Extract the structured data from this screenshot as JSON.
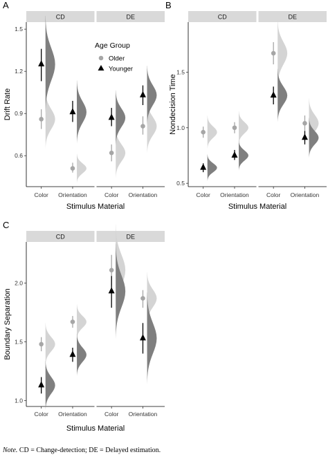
{
  "figure": {
    "legend": {
      "title": "Age Group",
      "entries": [
        {
          "label": "Older",
          "shape": "circle",
          "color": "#a6a6a6"
        },
        {
          "label": "Younger",
          "shape": "triangle",
          "color": "#000000"
        }
      ]
    },
    "colors": {
      "older_point": "#a6a6a6",
      "older_violin": "#d4d4d4",
      "younger_point": "#000000",
      "younger_violin": "#7f7f7f",
      "strip": "#d9d9d9"
    },
    "note_label": "Note.",
    "note_text": " CD = Change-detection; DE = Delayed estimation."
  },
  "chart_data": [
    {
      "type": "scatter",
      "panel": "A",
      "ylabel": "Drift Rate",
      "xlabel": "Stimulus Material",
      "facets": [
        "CD",
        "DE"
      ],
      "categories": [
        "Color",
        "Orientation"
      ],
      "ylim": [
        0.38,
        1.55
      ],
      "yticks": [
        0.6,
        0.9,
        1.2,
        1.5
      ],
      "ytick_labels": [
        "0.6",
        "0.9",
        "1.2",
        "1.5"
      ],
      "series": [
        {
          "name": "Older",
          "points": [
            {
              "facet": "CD",
              "x": "Color",
              "y": 0.86,
              "lo": 0.79,
              "hi": 0.93
            },
            {
              "facet": "CD",
              "x": "Orientation",
              "y": 0.51,
              "lo": 0.48,
              "hi": 0.55
            },
            {
              "facet": "DE",
              "x": "Color",
              "y": 0.62,
              "lo": 0.56,
              "hi": 0.68
            },
            {
              "facet": "DE",
              "x": "Orientation",
              "y": 0.81,
              "lo": 0.75,
              "hi": 0.88
            }
          ]
        },
        {
          "name": "Younger",
          "points": [
            {
              "facet": "CD",
              "x": "Color",
              "y": 1.25,
              "lo": 1.13,
              "hi": 1.36
            },
            {
              "facet": "CD",
              "x": "Orientation",
              "y": 0.91,
              "lo": 0.84,
              "hi": 0.99
            },
            {
              "facet": "DE",
              "x": "Color",
              "y": 0.87,
              "lo": 0.81,
              "hi": 0.94
            },
            {
              "facet": "DE",
              "x": "Orientation",
              "y": 1.03,
              "lo": 0.96,
              "hi": 1.1
            }
          ]
        }
      ]
    },
    {
      "type": "scatter",
      "panel": "B",
      "ylabel": "Nondecision Time",
      "xlabel": "Stimulus Material",
      "facets": [
        "CD",
        "DE"
      ],
      "categories": [
        "Color",
        "Orientation"
      ],
      "ylim": [
        0.47,
        1.95
      ],
      "yticks": [
        0.5,
        1.0,
        1.5
      ],
      "ytick_labels": [
        "0.5",
        "1.0",
        "1.5"
      ],
      "series": [
        {
          "name": "Older",
          "points": [
            {
              "facet": "CD",
              "x": "Color",
              "y": 0.96,
              "lo": 0.91,
              "hi": 1.01
            },
            {
              "facet": "CD",
              "x": "Orientation",
              "y": 1.0,
              "lo": 0.95,
              "hi": 1.05
            },
            {
              "facet": "DE",
              "x": "Color",
              "y": 1.67,
              "lo": 1.57,
              "hi": 1.77
            },
            {
              "facet": "DE",
              "x": "Orientation",
              "y": 1.04,
              "lo": 0.96,
              "hi": 1.11
            }
          ]
        },
        {
          "name": "Younger",
          "points": [
            {
              "facet": "CD",
              "x": "Color",
              "y": 0.64,
              "lo": 0.6,
              "hi": 0.68
            },
            {
              "facet": "CD",
              "x": "Orientation",
              "y": 0.75,
              "lo": 0.71,
              "hi": 0.8
            },
            {
              "facet": "DE",
              "x": "Color",
              "y": 1.29,
              "lo": 1.21,
              "hi": 1.37
            },
            {
              "facet": "DE",
              "x": "Orientation",
              "y": 0.91,
              "lo": 0.85,
              "hi": 0.97
            }
          ]
        }
      ]
    },
    {
      "type": "scatter",
      "panel": "C",
      "ylabel": "Boundary Separation",
      "xlabel": "Stimulus Material",
      "facets": [
        "CD",
        "DE"
      ],
      "categories": [
        "Color",
        "Orientation"
      ],
      "ylim": [
        0.95,
        2.35
      ],
      "yticks": [
        1.0,
        1.5,
        2.0
      ],
      "ytick_labels": [
        "1.0",
        "1.5",
        "2.0"
      ],
      "series": [
        {
          "name": "Older",
          "points": [
            {
              "facet": "CD",
              "x": "Color",
              "y": 1.48,
              "lo": 1.42,
              "hi": 1.54
            },
            {
              "facet": "CD",
              "x": "Orientation",
              "y": 1.67,
              "lo": 1.62,
              "hi": 1.72
            },
            {
              "facet": "DE",
              "x": "Color",
              "y": 2.11,
              "lo": 1.98,
              "hi": 2.24
            },
            {
              "facet": "DE",
              "x": "Orientation",
              "y": 1.87,
              "lo": 1.79,
              "hi": 1.94
            }
          ]
        },
        {
          "name": "Younger",
          "points": [
            {
              "facet": "CD",
              "x": "Color",
              "y": 1.13,
              "lo": 1.06,
              "hi": 1.2
            },
            {
              "facet": "CD",
              "x": "Orientation",
              "y": 1.39,
              "lo": 1.33,
              "hi": 1.45
            },
            {
              "facet": "DE",
              "x": "Color",
              "y": 1.93,
              "lo": 1.79,
              "hi": 2.06
            },
            {
              "facet": "DE",
              "x": "Orientation",
              "y": 1.53,
              "lo": 1.4,
              "hi": 1.66
            }
          ]
        }
      ]
    }
  ]
}
